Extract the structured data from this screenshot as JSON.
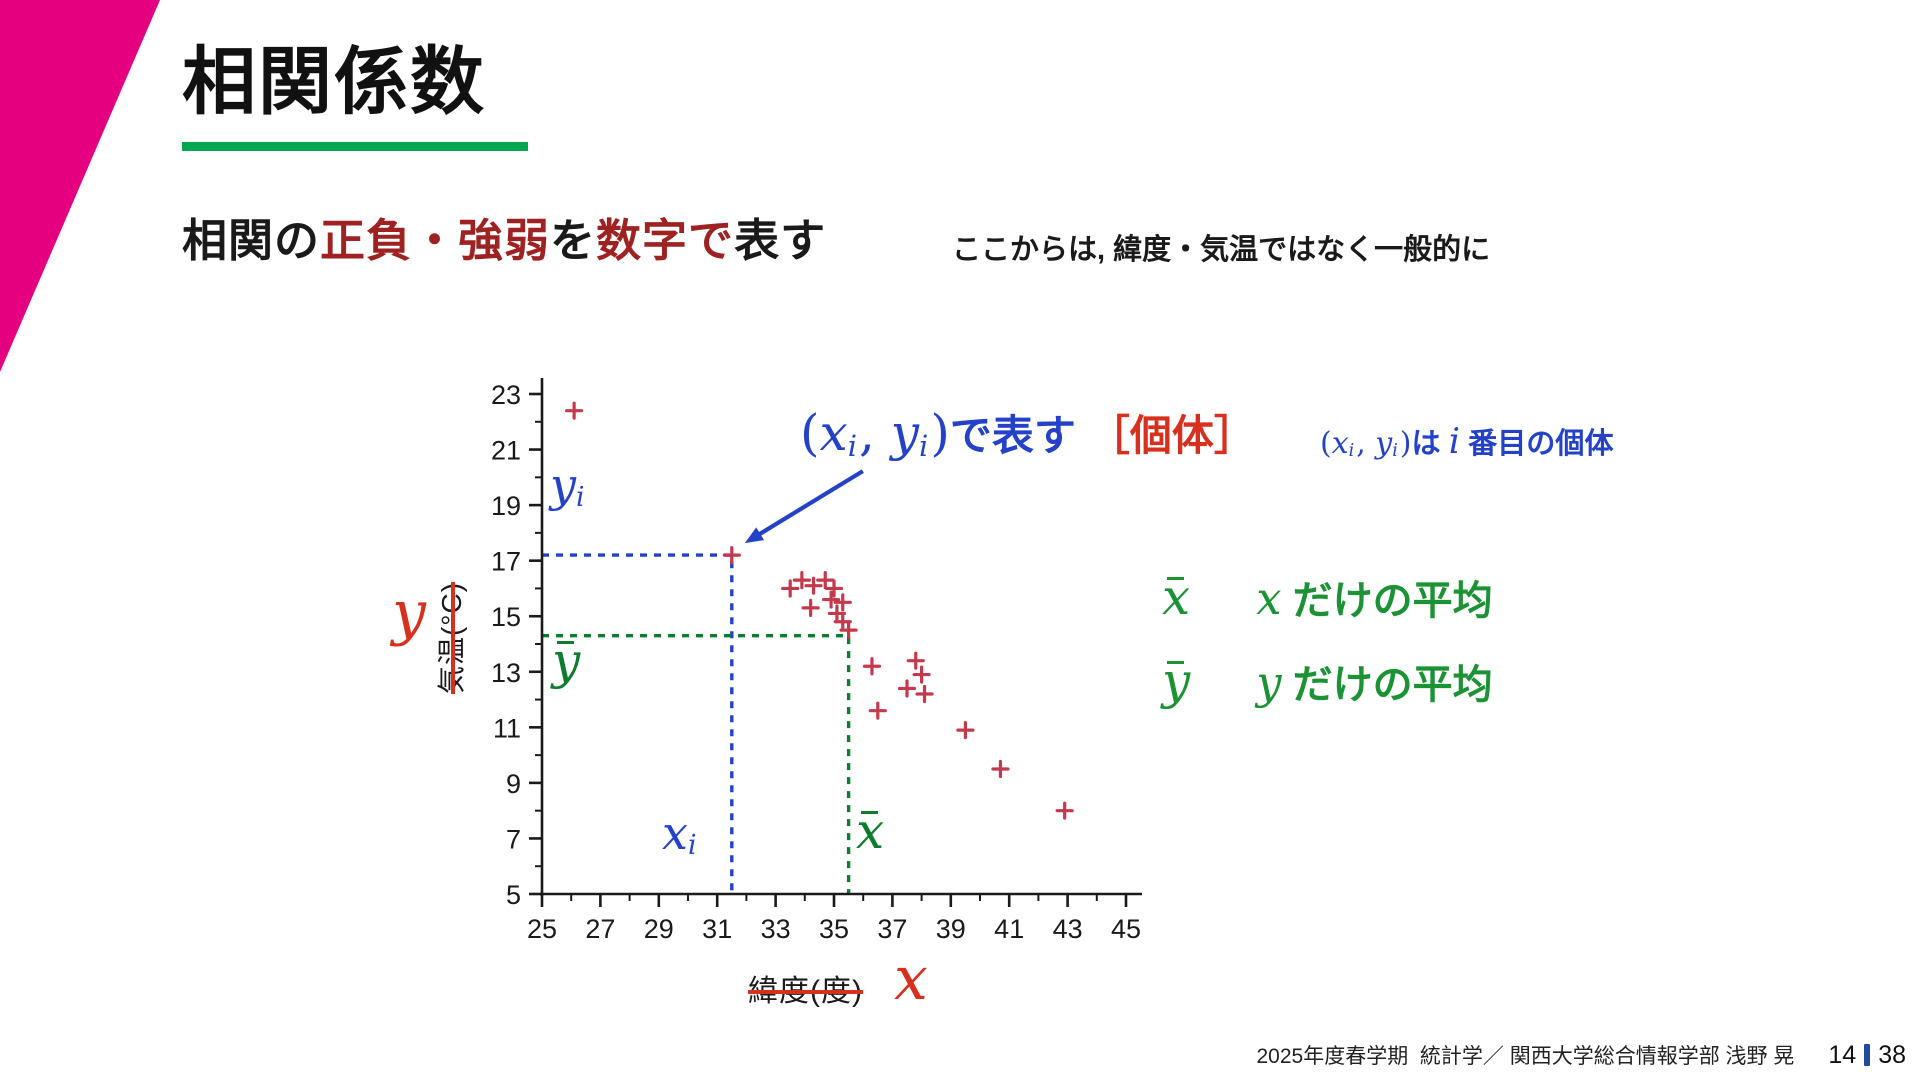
{
  "colors": {
    "magenta": "#e4007f",
    "underline": "#00a650",
    "darkred": "#9e2222",
    "blue": "#2342c8",
    "red": "#d7301f",
    "marker-red": "#c43a4c",
    "green-chart": "#0d7c2e",
    "green-ui": "#1b9334",
    "pagebar": "#204a9e",
    "axis": "#1a1a1a"
  },
  "slide": {
    "title": "相関係数",
    "heading": [
      {
        "t": "相関の",
        "s": "k"
      },
      {
        "t": "正負・強弱",
        "s": "r"
      },
      {
        "t": "を",
        "s": "k"
      },
      {
        "t": "数字で",
        "s": "r"
      },
      {
        "t": "表す",
        "s": "k"
      }
    ],
    "note": "ここからは, 緯度・気温ではなく一般的に",
    "footer": {
      "credit": "2025年度春学期  統計学／ 関西大学総合情報学部 浅野 晃",
      "page_current": "14",
      "page_total": "38"
    }
  },
  "annotation": {
    "main": [
      {
        "t": "(",
        "s": "bp"
      },
      {
        "t": "x",
        "s": "bi"
      },
      {
        "t": "i",
        "s": "bsub"
      },
      {
        "t": ", ",
        "s": "bp"
      },
      {
        "t": "y",
        "s": "bi"
      },
      {
        "t": "i",
        "s": "bsub"
      },
      {
        "t": ")",
        "s": "bp"
      },
      {
        "t": "で表す",
        "s": "jbb"
      },
      {
        "t": "［個体］",
        "s": "krb"
      }
    ],
    "secondary": [
      {
        "t": "(",
        "s": "bp"
      },
      {
        "t": "x",
        "s": "bi"
      },
      {
        "t": "i",
        "s": "bsub"
      },
      {
        "t": ", ",
        "s": "bp"
      },
      {
        "t": "y",
        "s": "bi"
      },
      {
        "t": "i",
        "s": "bsub"
      },
      {
        "t": ")",
        "s": "bp"
      },
      {
        "t": "は ",
        "s": "jb"
      },
      {
        "t": "i",
        "s": "bii"
      },
      {
        "t": " 番目の個体",
        "s": "jb"
      }
    ]
  },
  "chart_labels": {
    "yi": [
      {
        "t": "y",
        "s": "bi"
      },
      {
        "t": "i",
        "s": "bsub"
      }
    ],
    "ybar": [
      {
        "t": "y",
        "s": "gbar"
      }
    ],
    "xi": [
      {
        "t": "x",
        "s": "bi"
      },
      {
        "t": "i",
        "s": "bsub"
      }
    ],
    "xbar": [
      {
        "t": "x",
        "s": "gbar"
      }
    ],
    "y_var": "y",
    "x_var": "x",
    "ylabel": "気温(°C)",
    "xlabel": "緯度(度)"
  },
  "mean_legend": {
    "row_x": [
      {
        "t": "x",
        "s": "gbar"
      },
      {
        "t": "x",
        "s": "gi"
      },
      {
        "t": " だけの平均",
        "s": "jg"
      }
    ],
    "row_y": [
      {
        "t": "y",
        "s": "gbar"
      },
      {
        "t": "y",
        "s": "gi"
      },
      {
        "t": " だけの平均",
        "s": "jg"
      }
    ]
  },
  "chart_data": {
    "type": "scatter",
    "title": "",
    "xlabel": "緯度(度)",
    "ylabel": "気温(°C)",
    "xlim": [
      25,
      45
    ],
    "ylim": [
      5,
      23
    ],
    "xticks": [
      25,
      27,
      29,
      31,
      33,
      35,
      37,
      39,
      41,
      43,
      45
    ],
    "yticks": [
      5,
      7,
      9,
      11,
      13,
      15,
      17,
      19,
      21,
      23
    ],
    "grid": false,
    "marker": "plus",
    "points": [
      [
        26.1,
        22.4
      ],
      [
        31.5,
        17.2
      ],
      [
        33.5,
        16.0
      ],
      [
        33.9,
        16.3
      ],
      [
        34.3,
        16.1
      ],
      [
        34.7,
        16.3
      ],
      [
        35.0,
        16.0
      ],
      [
        34.2,
        15.3
      ],
      [
        34.9,
        15.6
      ],
      [
        35.3,
        15.5
      ],
      [
        35.1,
        15.1
      ],
      [
        35.3,
        14.8
      ],
      [
        35.5,
        14.5
      ],
      [
        36.3,
        13.2
      ],
      [
        37.8,
        13.4
      ],
      [
        38.0,
        12.9
      ],
      [
        37.5,
        12.4
      ],
      [
        38.1,
        12.2
      ],
      [
        36.5,
        11.6
      ],
      [
        39.5,
        10.9
      ],
      [
        40.7,
        9.5
      ],
      [
        42.9,
        8.0
      ]
    ],
    "highlight": {
      "x": 31.5,
      "y": 17.2
    },
    "mean": {
      "x": 35.5,
      "y": 14.3
    }
  }
}
